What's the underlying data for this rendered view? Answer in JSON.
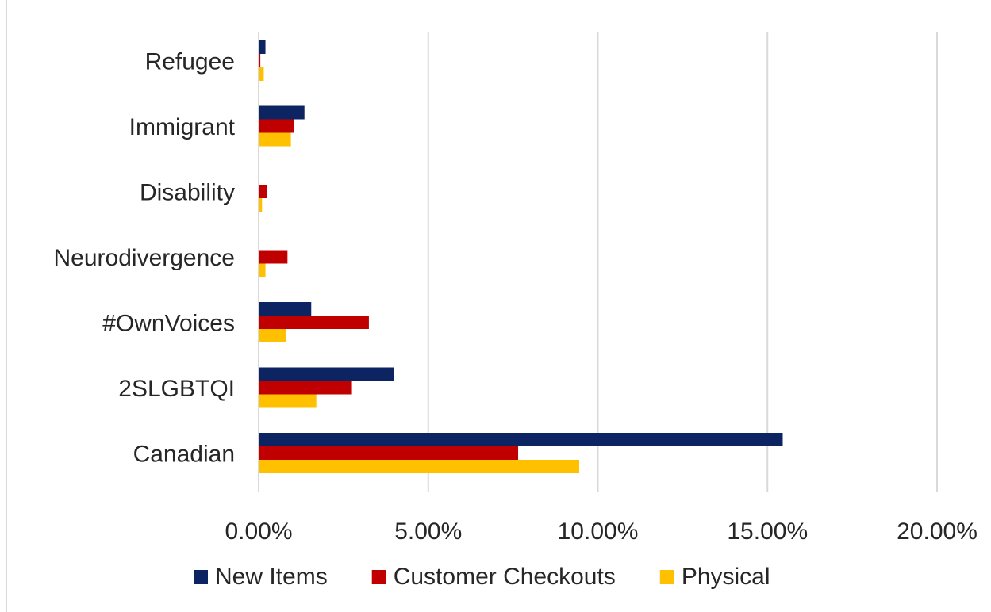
{
  "chart_data": {
    "type": "bar",
    "orientation": "horizontal",
    "categories": [
      "Refugee",
      "Immigrant",
      "Disability",
      "Neurodivergence",
      "#OwnVoices",
      "2SLGBTQI",
      "Canadian"
    ],
    "series": [
      {
        "name": "New Items",
        "color": "#0c2461",
        "values": [
          0.2,
          1.35,
          0,
          0,
          1.55,
          4.0,
          15.45
        ]
      },
      {
        "name": "Customer Checkouts",
        "color": "#c00000",
        "values": [
          0.05,
          1.05,
          0.25,
          0.85,
          3.25,
          2.75,
          7.65
        ]
      },
      {
        "name": "Physical",
        "color": "#ffc000",
        "values": [
          0.15,
          0.95,
          0.1,
          0.2,
          0.8,
          1.7,
          9.45
        ]
      }
    ],
    "x_ticks": [
      "0.00%",
      "5.00%",
      "10.00%",
      "15.00%",
      "20.00%"
    ],
    "xlim": [
      0,
      20
    ],
    "x_unit": "percent",
    "grid": "vertical",
    "legend_position": "bottom"
  }
}
